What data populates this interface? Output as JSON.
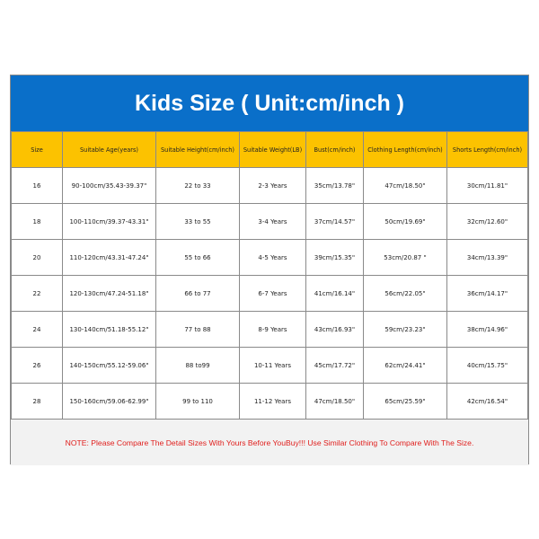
{
  "title": "Kids Size ( Unit:cm/inch )",
  "colors": {
    "title_bg": "#0a6fc9",
    "header_bg": "#fcc200",
    "note_text": "#e0201e"
  },
  "table": {
    "headers": [
      "Size",
      "Suitable Age(years)",
      "Suitable Height(cm/inch)",
      "Suitable Weight(LB)",
      "Bust(cm/inch)",
      "Clothing Length(cm/inch)",
      "Shorts Length(cm/inch)"
    ],
    "rows": [
      [
        "16",
        "90-100cm/35.43-39.37\"",
        "22 to 33",
        "2-3 Years",
        "35cm/13.78\"",
        "47cm/18.50\"",
        "30cm/11.81\""
      ],
      [
        "18",
        "100-110cm/39.37-43.31\"",
        "33 to 55",
        "3-4 Years",
        "37cm/14.57\"",
        "50cm/19.69\"",
        "32cm/12.60\""
      ],
      [
        "20",
        "110-120cm/43.31-47.24\"",
        "55 to 66",
        "4-5 Years",
        "39cm/15.35\"",
        "53cm/20.87 \"",
        "34cm/13.39\""
      ],
      [
        "22",
        "120-130cm/47.24-51.18\"",
        "66 to 77",
        "6-7 Years",
        "41cm/16.14\"",
        "56cm/22.05\"",
        "36cm/14.17\""
      ],
      [
        "24",
        "130-140cm/51.18-55.12\"",
        "77 to 88",
        "8-9 Years",
        "43cm/16.93\"",
        "59cm/23.23\"",
        "38cm/14.96\""
      ],
      [
        "26",
        "140-150cm/55.12-59.06\"",
        "88 to99",
        "10-11 Years",
        "45cm/17.72\"",
        "62cm/24.41\"",
        "40cm/15.75\""
      ],
      [
        "28",
        "150-160cm/59.06-62.99\"",
        "99 to 110",
        "11-12 Years",
        "47cm/18.50\"",
        "65cm/25.59\"",
        "42cm/16.54\""
      ]
    ]
  },
  "note": "NOTE: Please Compare The Detail Sizes With Yours Before YouBuy!!! Use Similar Clothing To Compare With The Size."
}
